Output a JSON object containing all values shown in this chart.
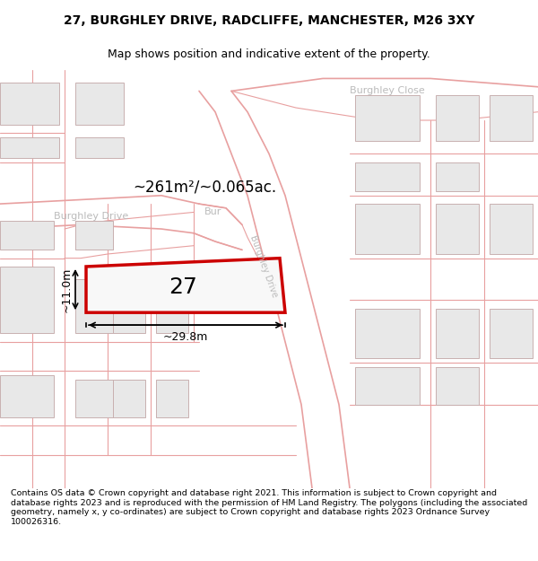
{
  "title_line1": "27, BURGHLEY DRIVE, RADCLIFFE, MANCHESTER, M26 3XY",
  "title_line2": "Map shows position and indicative extent of the property.",
  "footer_text": "Contains OS data © Crown copyright and database right 2021. This information is subject to Crown copyright and database rights 2023 and is reproduced with the permission of HM Land Registry. The polygons (including the associated geometry, namely x, y co-ordinates) are subject to Crown copyright and database rights 2023 Ordnance Survey 100026316.",
  "area_label": "~261m²/~0.065ac.",
  "width_label": "~29.8m",
  "height_label": "~11.0m",
  "number_label": "27",
  "bg_color": "#ffffff",
  "road_line_color": "#e8a0a0",
  "building_fill": "#e8e8e8",
  "building_edge": "#c8b0b0",
  "highlight_fill": "#f8f8f8",
  "highlight_edge": "#cc0000",
  "street_label_color": "#bbbbbb",
  "dim_color": "#000000",
  "title_fontsize": 10,
  "subtitle_fontsize": 9,
  "footer_fontsize": 6.8,
  "street_fontsize": 8,
  "area_fontsize": 12,
  "number_fontsize": 18,
  "dim_fontsize": 9
}
